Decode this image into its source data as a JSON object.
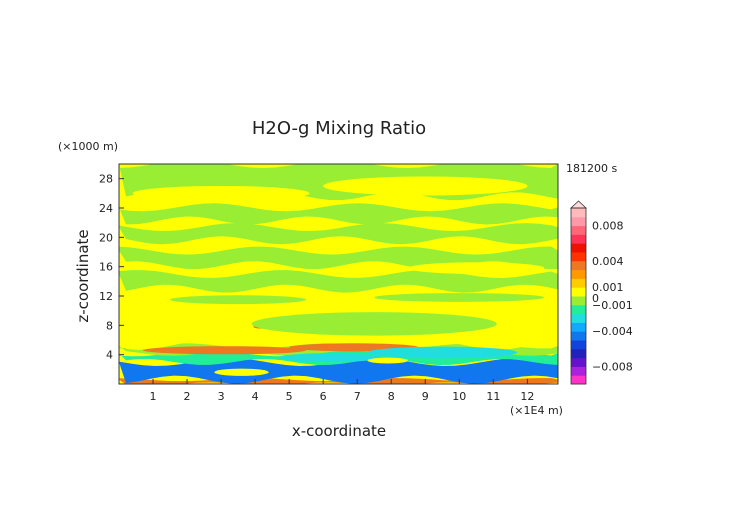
{
  "chart_data": {
    "type": "heatmap",
    "title": "H2O-g Mixing Ratio",
    "xlabel": "x-coordinate",
    "ylabel": "z-coordinate",
    "x_unit": "(×1E4 m)",
    "y_unit": "(×1000 m)",
    "time_label": "181200 s",
    "xlim": [
      0,
      12.9
    ],
    "ylim": [
      0,
      30
    ],
    "x_ticks": [
      "1",
      "2",
      "3",
      "4",
      "5",
      "6",
      "7",
      "8",
      "9",
      "10",
      "11",
      "12"
    ],
    "y_ticks": [
      "4",
      "8",
      "12",
      "16",
      "20",
      "24",
      "28"
    ],
    "colorbar": {
      "labels": [
        "0.008",
        "0.004",
        "0.001",
        "0",
        "−0.001",
        "−0.004",
        "−0.008"
      ],
      "label_values": [
        0.008,
        0.004,
        0.001,
        0,
        -0.001,
        -0.004,
        -0.008
      ],
      "colors": [
        "#ff33cc",
        "#aa22dd",
        "#6611cc",
        "#2222bb",
        "#1144dd",
        "#1177ee",
        "#11aaff",
        "#22dddd",
        "#22ee99",
        "#99ee33",
        "#ffff00",
        "#ffcc00",
        "#ff9900",
        "#ee7722",
        "#ff3300",
        "#ee1100",
        "#ff3355",
        "#ff6677",
        "#ff99aa",
        "#ffbbbb"
      ]
    },
    "bands": [
      {
        "z": [
          0.0,
          0.6
        ],
        "x": [
          0,
          12.9
        ],
        "color": "#ee7722"
      },
      {
        "z": [
          0.6,
          3.0
        ],
        "x": [
          0,
          12.9
        ],
        "color": "#1177ee"
      },
      {
        "z": [
          3.0,
          4.2
        ],
        "x": [
          0,
          12.9
        ],
        "color": "#22ee99"
      },
      {
        "z": [
          4.2,
          5.2
        ],
        "x": [
          0,
          12.9
        ],
        "color": "#99ee33"
      },
      {
        "z": [
          5.2,
          10.0
        ],
        "x": [
          0,
          12.9
        ],
        "color": "#ffff00"
      },
      {
        "z": [
          13.0,
          15.0
        ],
        "x": [
          0,
          12.9
        ],
        "color": "#99ee33"
      },
      {
        "z": [
          16.2,
          18.2
        ],
        "x": [
          0,
          12.9
        ],
        "color": "#99ee33"
      },
      {
        "z": [
          19.6,
          21.4
        ],
        "x": [
          0,
          12.9
        ],
        "color": "#99ee33"
      },
      {
        "z": [
          22.3,
          24.1
        ],
        "x": [
          0,
          12.9
        ],
        "color": "#99ee33"
      },
      {
        "z": [
          25.6,
          30.0
        ],
        "x": [
          0,
          12.9
        ],
        "color": "#99ee33"
      }
    ],
    "features": [
      {
        "kind": "blob",
        "color": "#ee7722",
        "cx": 3.1,
        "cz": 4.6,
        "rx": 2.4,
        "rz": 0.55
      },
      {
        "kind": "blob",
        "color": "#ee7722",
        "cx": 6.9,
        "cz": 5.0,
        "rx": 1.9,
        "rz": 0.55
      },
      {
        "kind": "blob",
        "color": "#ee7722",
        "cx": 4.2,
        "cz": 7.8,
        "rx": 0.25,
        "rz": 0.25
      },
      {
        "kind": "blob",
        "color": "#99ee33",
        "cx": 7.5,
        "cz": 8.2,
        "rx": 3.6,
        "rz": 1.6
      },
      {
        "kind": "blob",
        "color": "#22dddd",
        "cx": 9.5,
        "cz": 4.3,
        "rx": 2.2,
        "rz": 0.8
      },
      {
        "kind": "blob",
        "color": "#22dddd",
        "cx": 6.2,
        "cz": 3.6,
        "rx": 1.5,
        "rz": 0.6
      },
      {
        "kind": "blob",
        "color": "#ffff00",
        "cx": 3.6,
        "cz": 1.6,
        "rx": 0.8,
        "rz": 0.5
      },
      {
        "kind": "blob",
        "color": "#ffff00",
        "cx": 7.9,
        "cz": 3.2,
        "rx": 0.6,
        "rz": 0.4
      },
      {
        "kind": "blob",
        "color": "#ffff00",
        "cx": 10.5,
        "cz": 15.8,
        "rx": 2.0,
        "rz": 0.8
      },
      {
        "kind": "blob",
        "color": "#ffff00",
        "cx": 9.0,
        "cz": 27.0,
        "rx": 3.0,
        "rz": 1.3
      },
      {
        "kind": "blob",
        "color": "#ffff00",
        "cx": 3.0,
        "cz": 26.0,
        "rx": 2.6,
        "rz": 1.0
      },
      {
        "kind": "blob",
        "color": "#99ee33",
        "cx": 10.0,
        "cz": 11.8,
        "rx": 2.5,
        "rz": 0.6
      },
      {
        "kind": "blob",
        "color": "#99ee33",
        "cx": 3.5,
        "cz": 11.5,
        "rx": 2.0,
        "rz": 0.6
      }
    ]
  }
}
